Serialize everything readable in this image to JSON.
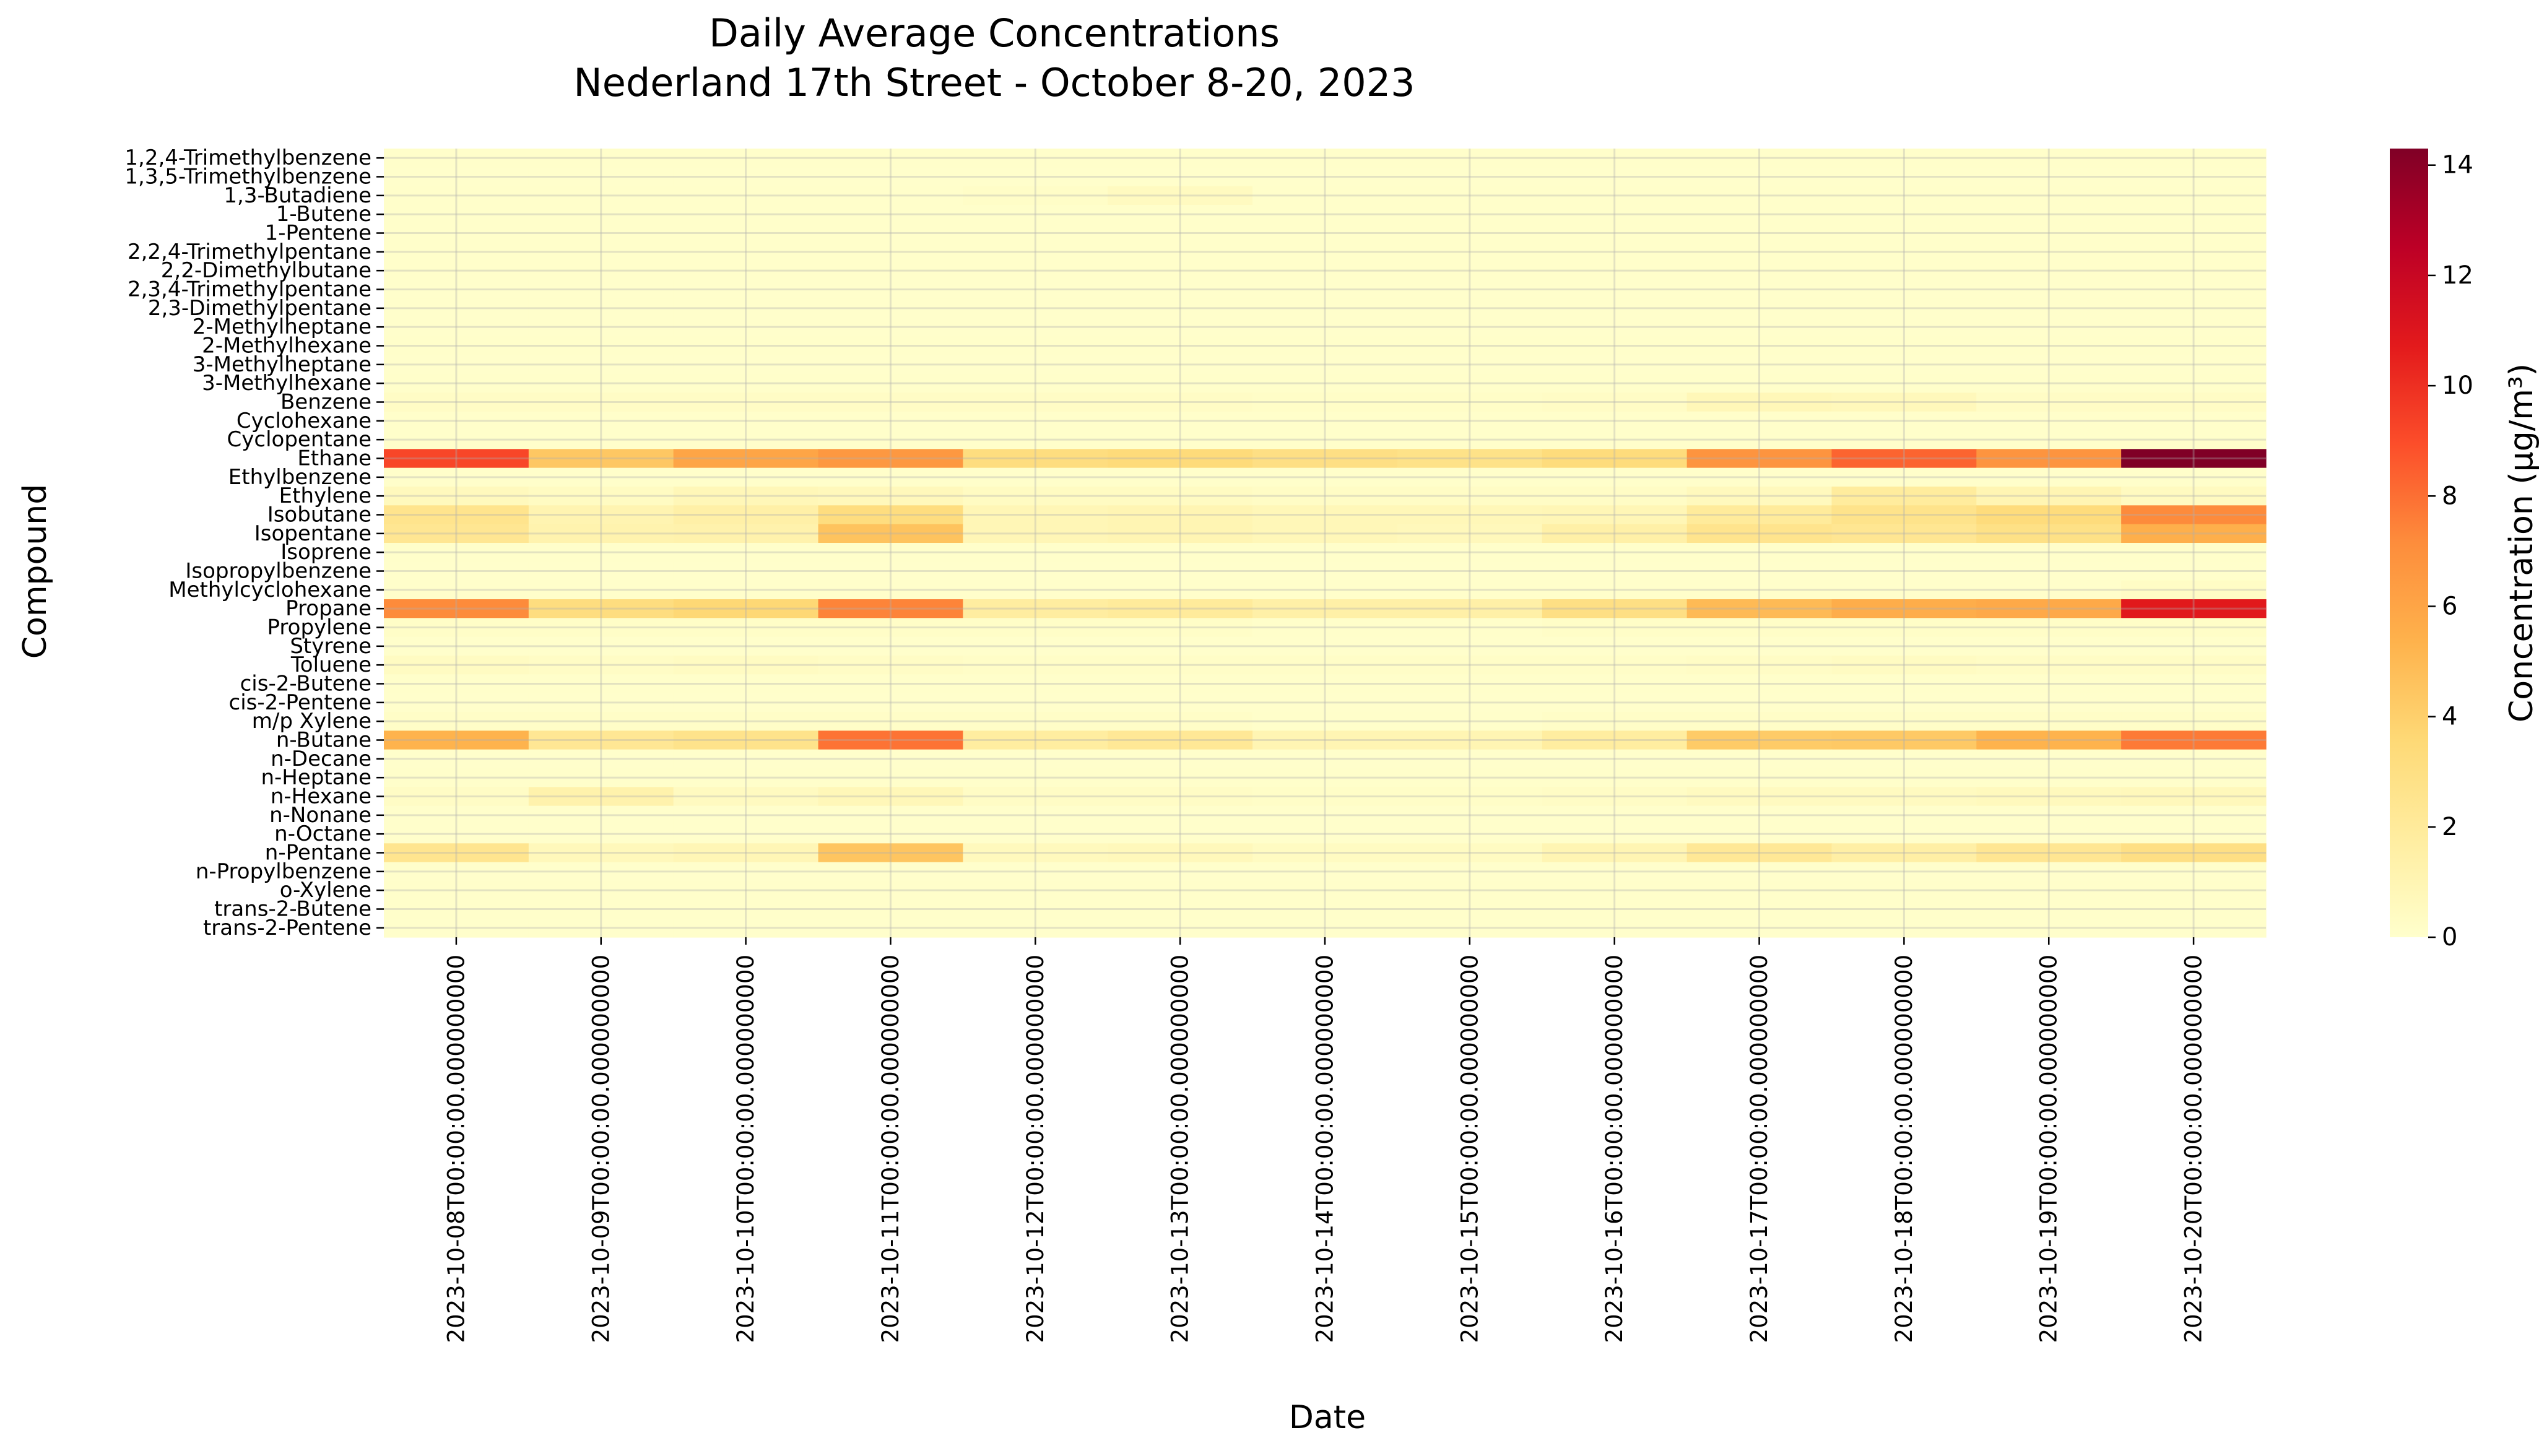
{
  "chart_data": {
    "type": "heatmap",
    "title_lines": [
      "Daily Average Concentrations",
      "Nederland 17th Street - October 8-20, 2023"
    ],
    "xlabel": "Date",
    "ylabel": "Compound",
    "colorbar_label": "Concentration (µg/m³)",
    "colormap": "YlOrRd",
    "color_range": [
      0,
      14.3
    ],
    "colorbar_ticks": [
      0,
      2,
      4,
      6,
      8,
      10,
      12,
      14
    ],
    "grid": true,
    "x": [
      "2023-10-08T00:00:00.000000000",
      "2023-10-09T00:00:00.000000000",
      "2023-10-10T00:00:00.000000000",
      "2023-10-11T00:00:00.000000000",
      "2023-10-12T00:00:00.000000000",
      "2023-10-13T00:00:00.000000000",
      "2023-10-14T00:00:00.000000000",
      "2023-10-15T00:00:00.000000000",
      "2023-10-16T00:00:00.000000000",
      "2023-10-17T00:00:00.000000000",
      "2023-10-18T00:00:00.000000000",
      "2023-10-19T00:00:00.000000000",
      "2023-10-20T00:00:00.000000000"
    ],
    "y": [
      "1,2,4-Trimethylbenzene",
      "1,3,5-Trimethylbenzene",
      "1,3-Butadiene",
      "1-Butene",
      "1-Pentene",
      "2,2,4-Trimethylpentane",
      "2,2-Dimethylbutane",
      "2,3,4-Trimethylpentane",
      "2,3-Dimethylpentane",
      "2-Methylheptane",
      "2-Methylhexane",
      "3-Methylheptane",
      "3-Methylhexane",
      "Benzene",
      "Cyclohexane",
      "Cyclopentane",
      "Ethane",
      "Ethylbenzene",
      "Ethylene",
      "Isobutane",
      "Isopentane",
      "Isoprene",
      "Isopropylbenzene",
      "Methylcyclohexane",
      "Propane",
      "Propylene",
      "Styrene",
      "Toluene",
      "cis-2-Butene",
      "cis-2-Pentene",
      "m/p Xylene",
      "n-Butane",
      "n-Decane",
      "n-Heptane",
      "n-Hexane",
      "n-Nonane",
      "n-Octane",
      "n-Pentane",
      "n-Propylbenzene",
      "o-Xylene",
      "trans-2-Butene",
      "trans-2-Pentene"
    ],
    "values": [
      [
        0.1,
        0.1,
        0.1,
        0.1,
        0.1,
        0.1,
        0.1,
        0.1,
        0.1,
        0.1,
        0.1,
        0.1,
        0.1
      ],
      [
        0.05,
        0.05,
        0.05,
        0.05,
        0.05,
        0.05,
        0.05,
        0.05,
        0.05,
        0.05,
        0.05,
        0.05,
        0.05
      ],
      [
        0.1,
        0.1,
        0.1,
        0.1,
        0.2,
        0.5,
        0.1,
        0.1,
        0.1,
        0.1,
        0.1,
        0.1,
        0.1
      ],
      [
        0.1,
        0.1,
        0.1,
        0.1,
        0.1,
        0.1,
        0.1,
        0.1,
        0.1,
        0.1,
        0.1,
        0.1,
        0.1
      ],
      [
        0.1,
        0.1,
        0.1,
        0.1,
        0.1,
        0.1,
        0.1,
        0.1,
        0.1,
        0.1,
        0.1,
        0.1,
        0.1
      ],
      [
        0.1,
        0.1,
        0.1,
        0.1,
        0.1,
        0.1,
        0.1,
        0.1,
        0.1,
        0.1,
        0.1,
        0.1,
        0.1
      ],
      [
        0.1,
        0.1,
        0.1,
        0.1,
        0.1,
        0.1,
        0.1,
        0.1,
        0.1,
        0.1,
        0.1,
        0.1,
        0.1
      ],
      [
        0.05,
        0.05,
        0.05,
        0.05,
        0.05,
        0.05,
        0.05,
        0.05,
        0.05,
        0.05,
        0.05,
        0.05,
        0.05
      ],
      [
        0.05,
        0.05,
        0.05,
        0.05,
        0.05,
        0.05,
        0.05,
        0.05,
        0.05,
        0.05,
        0.05,
        0.05,
        0.05
      ],
      [
        0.05,
        0.05,
        0.05,
        0.05,
        0.05,
        0.05,
        0.05,
        0.05,
        0.05,
        0.05,
        0.05,
        0.05,
        0.05
      ],
      [
        0.1,
        0.1,
        0.1,
        0.1,
        0.1,
        0.1,
        0.1,
        0.1,
        0.1,
        0.1,
        0.1,
        0.1,
        0.1
      ],
      [
        0.05,
        0.05,
        0.05,
        0.05,
        0.05,
        0.05,
        0.05,
        0.05,
        0.05,
        0.05,
        0.05,
        0.05,
        0.05
      ],
      [
        0.1,
        0.1,
        0.1,
        0.1,
        0.1,
        0.1,
        0.1,
        0.1,
        0.1,
        0.1,
        0.1,
        0.1,
        0.1
      ],
      [
        0.3,
        0.3,
        0.3,
        0.3,
        0.3,
        0.3,
        0.2,
        0.2,
        0.3,
        0.8,
        0.7,
        0.3,
        0.3
      ],
      [
        0.1,
        0.1,
        0.1,
        0.1,
        0.1,
        0.1,
        0.1,
        0.1,
        0.1,
        0.1,
        0.1,
        0.1,
        0.1
      ],
      [
        0.1,
        0.1,
        0.1,
        0.1,
        0.1,
        0.1,
        0.1,
        0.1,
        0.1,
        0.1,
        0.1,
        0.1,
        0.1
      ],
      [
        9.2,
        4.4,
        6.0,
        6.6,
        3.2,
        3.4,
        3.0,
        2.8,
        3.3,
        6.8,
        8.3,
        6.8,
        14.3
      ],
      [
        0.1,
        0.1,
        0.1,
        0.1,
        0.1,
        0.1,
        0.1,
        0.1,
        0.1,
        0.1,
        0.1,
        0.1,
        0.1
      ],
      [
        0.6,
        0.4,
        0.8,
        0.7,
        0.4,
        0.4,
        0.3,
        0.3,
        0.3,
        0.6,
        1.9,
        1.0,
        0.5
      ],
      [
        2.6,
        1.1,
        1.5,
        3.2,
        0.9,
        1.0,
        0.8,
        0.8,
        0.9,
        2.0,
        2.7,
        3.3,
        7.2
      ],
      [
        2.4,
        1.2,
        1.3,
        4.6,
        0.9,
        1.0,
        0.8,
        0.7,
        1.5,
        2.6,
        2.4,
        2.9,
        5.5
      ],
      [
        0.1,
        0.1,
        0.1,
        0.1,
        0.1,
        0.1,
        0.1,
        0.1,
        0.1,
        0.1,
        0.1,
        0.1,
        0.1
      ],
      [
        0.05,
        0.05,
        0.05,
        0.05,
        0.05,
        0.05,
        0.05,
        0.05,
        0.05,
        0.05,
        0.05,
        0.05,
        0.05
      ],
      [
        0.1,
        0.1,
        0.1,
        0.1,
        0.1,
        0.1,
        0.1,
        0.1,
        0.1,
        0.1,
        0.1,
        0.1,
        0.3
      ],
      [
        7.2,
        3.2,
        3.6,
        7.4,
        1.8,
        2.0,
        1.5,
        1.5,
        3.0,
        5.0,
        5.6,
        5.8,
        10.8
      ],
      [
        0.2,
        0.2,
        0.2,
        0.2,
        0.2,
        0.2,
        0.1,
        0.1,
        0.2,
        0.2,
        0.2,
        0.2,
        0.2
      ],
      [
        0.05,
        0.05,
        0.05,
        0.05,
        0.05,
        0.05,
        0.05,
        0.05,
        0.05,
        0.05,
        0.05,
        0.05,
        0.05
      ],
      [
        0.4,
        0.3,
        0.4,
        0.3,
        0.2,
        0.2,
        0.2,
        0.2,
        0.2,
        0.3,
        0.4,
        0.3,
        0.3
      ],
      [
        0.1,
        0.1,
        0.1,
        0.1,
        0.1,
        0.1,
        0.1,
        0.1,
        0.1,
        0.1,
        0.1,
        0.1,
        0.1
      ],
      [
        0.05,
        0.05,
        0.05,
        0.05,
        0.05,
        0.05,
        0.05,
        0.05,
        0.05,
        0.05,
        0.05,
        0.05,
        0.05
      ],
      [
        0.2,
        0.2,
        0.2,
        0.2,
        0.2,
        0.2,
        0.1,
        0.1,
        0.2,
        0.2,
        0.2,
        0.2,
        0.2
      ],
      [
        5.3,
        2.3,
        2.7,
        7.9,
        1.8,
        2.2,
        1.0,
        1.0,
        1.8,
        4.2,
        4.3,
        5.3,
        7.7
      ],
      [
        0.05,
        0.05,
        0.05,
        0.05,
        0.05,
        0.05,
        0.05,
        0.05,
        0.05,
        0.05,
        0.05,
        0.05,
        0.05
      ],
      [
        0.1,
        0.1,
        0.1,
        0.1,
        0.1,
        0.1,
        0.1,
        0.1,
        0.1,
        0.1,
        0.1,
        0.1,
        0.1
      ],
      [
        0.3,
        1.3,
        0.5,
        0.8,
        0.3,
        0.3,
        0.2,
        0.2,
        0.3,
        0.5,
        0.5,
        0.6,
        0.7
      ],
      [
        0.05,
        0.05,
        0.05,
        0.05,
        0.05,
        0.05,
        0.05,
        0.05,
        0.05,
        0.05,
        0.05,
        0.05,
        0.05
      ],
      [
        0.05,
        0.05,
        0.05,
        0.05,
        0.05,
        0.05,
        0.05,
        0.05,
        0.05,
        0.05,
        0.05,
        0.05,
        0.05
      ],
      [
        2.5,
        0.7,
        0.9,
        4.5,
        0.6,
        0.7,
        0.4,
        0.4,
        1.0,
        2.2,
        1.6,
        2.4,
        3.0
      ],
      [
        0.05,
        0.05,
        0.05,
        0.05,
        0.05,
        0.05,
        0.05,
        0.05,
        0.05,
        0.05,
        0.05,
        0.05,
        0.05
      ],
      [
        0.1,
        0.1,
        0.1,
        0.1,
        0.1,
        0.1,
        0.1,
        0.1,
        0.1,
        0.1,
        0.1,
        0.1,
        0.1
      ],
      [
        0.1,
        0.1,
        0.1,
        0.1,
        0.1,
        0.1,
        0.1,
        0.1,
        0.1,
        0.1,
        0.1,
        0.1,
        0.1
      ],
      [
        0.05,
        0.05,
        0.05,
        0.05,
        0.05,
        0.05,
        0.05,
        0.05,
        0.05,
        0.05,
        0.05,
        0.05,
        0.05
      ]
    ]
  }
}
